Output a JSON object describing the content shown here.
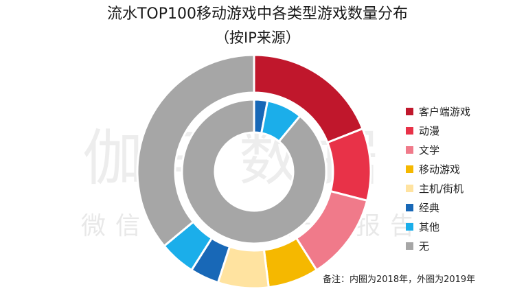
{
  "title_line1": "流水TOP100移动游戏中各类型游戏数量分布",
  "title_line2": "（按IP来源）",
  "watermark": {
    "main": "伽马数据",
    "sub": "微信号：游戏产业报告"
  },
  "note": "备注：内圈为2018年，外圈为2019年",
  "chart_data": {
    "type": "pie",
    "subtype": "nested-donut",
    "title": "流水TOP100移动游戏中各类型游戏数量分布（按IP来源）",
    "categories": [
      "客户端游戏",
      "动漫",
      "文学",
      "移动游戏",
      "主机/街机",
      "经典",
      "其他",
      "无"
    ],
    "colors": [
      "#C0172C",
      "#E83248",
      "#F07A8A",
      "#F5B800",
      "#FFE3A0",
      "#1868B7",
      "#1BAEEA",
      "#A6A6A6"
    ],
    "series": [
      {
        "name": "2019年",
        "ring": "outer",
        "values": [
          19,
          10,
          12,
          7,
          7,
          4,
          5,
          36
        ]
      },
      {
        "name": "2018年",
        "ring": "inner",
        "values": [
          0,
          0,
          0,
          0,
          0,
          3,
          8,
          89
        ]
      }
    ],
    "legend": {
      "position": "right",
      "entries": [
        "客户端游戏",
        "动漫",
        "文学",
        "移动游戏",
        "主机/街机",
        "经典",
        "其他",
        "无"
      ]
    },
    "annotation": "备注：内圈为2018年，外圈为2019年"
  }
}
